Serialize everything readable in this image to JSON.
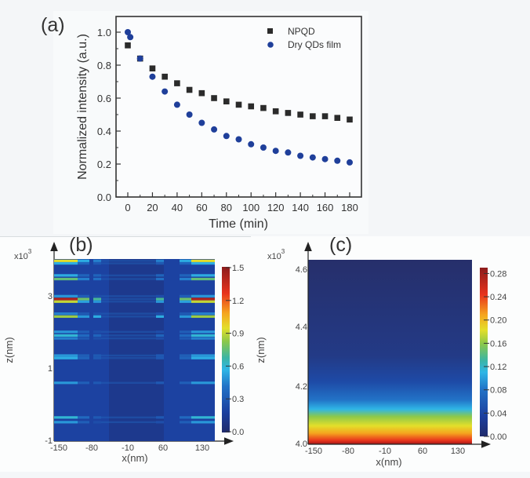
{
  "figure": {
    "panel_labels": [
      "(a)",
      "(b)",
      "(c)"
    ]
  },
  "chart_data": [
    {
      "type": "scatter",
      "panel": "(a)",
      "title": "",
      "xlabel": "Time (min)",
      "ylabel": "Normalized intensity (a.u.)",
      "xlim": [
        -8,
        190
      ],
      "ylim": [
        0.0,
        1.1
      ],
      "xticks": [
        0,
        20,
        40,
        60,
        80,
        100,
        120,
        140,
        160,
        180
      ],
      "xtick_labels": [
        "0",
        "20",
        "40",
        "60",
        "80",
        "100",
        "120",
        "140",
        "160",
        "180"
      ],
      "yticks": [
        0.0,
        0.2,
        0.4,
        0.6,
        0.8,
        1.0
      ],
      "ytick_labels": [
        "0.0",
        "0.2",
        "0.4",
        "0.6",
        "0.8",
        "1.0"
      ],
      "grid": false,
      "legend_position": "top-right",
      "series": [
        {
          "name": "NPQD",
          "marker": "square",
          "color": "#2b2b2b",
          "x": [
            0,
            10,
            20,
            30,
            40,
            50,
            60,
            70,
            80,
            90,
            100,
            110,
            120,
            130,
            140,
            150,
            160,
            170,
            180
          ],
          "y": [
            0.92,
            0.84,
            0.78,
            0.73,
            0.69,
            0.65,
            0.63,
            0.6,
            0.58,
            0.56,
            0.55,
            0.54,
            0.52,
            0.51,
            0.5,
            0.49,
            0.49,
            0.48,
            0.47
          ]
        },
        {
          "name": "Dry QDs film",
          "marker": "circle",
          "color": "#1f3f9a",
          "x": [
            0,
            2,
            10,
            20,
            30,
            40,
            50,
            60,
            70,
            80,
            90,
            100,
            110,
            120,
            130,
            140,
            150,
            160,
            170,
            180
          ],
          "y": [
            1.0,
            0.97,
            0.84,
            0.73,
            0.64,
            0.56,
            0.5,
            0.45,
            0.41,
            0.37,
            0.35,
            0.32,
            0.3,
            0.28,
            0.27,
            0.25,
            0.24,
            0.23,
            0.22,
            0.21
          ]
        }
      ]
    },
    {
      "type": "heatmap",
      "panel": "(b)",
      "xlabel": "x(nm)",
      "ylabel": "z(nm)",
      "y_multiplier": "x10",
      "y_multiplier_exp": "3",
      "xtick_labels": [
        "-150",
        "-80",
        "-10",
        "60",
        "130"
      ],
      "xticks": [
        -150,
        -80,
        -10,
        60,
        130
      ],
      "ytick_labels": [
        "3",
        "1",
        "-1"
      ],
      "yticks": [
        3,
        1,
        -1
      ],
      "ylim": [
        -1,
        4
      ],
      "colorbar": {
        "range": [
          0.0,
          1.5
        ],
        "ticks": [
          1.5,
          1.2,
          0.9,
          0.6,
          0.3,
          0.0
        ],
        "tick_labels": [
          "1.5",
          "1.2",
          "0.9",
          "0.6",
          "0.3",
          "0.0"
        ],
        "colormap": "jet"
      },
      "description": "Horizontal intensity bands along z; brightest near x edges (-150, 130) and at x≈-80 and x≈60; peak ~1.4 near z≈2.9e3",
      "bands": [
        {
          "z": 3.95,
          "edge": 0.95,
          "mid": 0.45
        },
        {
          "z": 3.88,
          "edge": 0.55,
          "mid": 0.3
        },
        {
          "z": 3.55,
          "edge": 0.55,
          "mid": 0.35
        },
        {
          "z": 3.45,
          "edge": 0.75,
          "mid": 0.4
        },
        {
          "z": 2.98,
          "edge": 0.5,
          "mid": 0.25
        },
        {
          "z": 2.9,
          "edge": 1.4,
          "mid": 0.7
        },
        {
          "z": 2.83,
          "edge": 0.9,
          "mid": 0.5
        },
        {
          "z": 2.5,
          "edge": 0.45,
          "mid": 0.25
        },
        {
          "z": 2.42,
          "edge": 0.85,
          "mid": 0.55
        },
        {
          "z": 2.0,
          "edge": 0.5,
          "mid": 0.25
        },
        {
          "z": 1.9,
          "edge": 0.6,
          "mid": 0.35
        },
        {
          "z": 1.82,
          "edge": 0.45,
          "mid": 0.25
        },
        {
          "z": 1.35,
          "edge": 0.5,
          "mid": 0.3
        },
        {
          "z": 1.28,
          "edge": 0.55,
          "mid": 0.3
        },
        {
          "z": 0.6,
          "edge": 0.5,
          "mid": 0.3
        },
        {
          "z": -0.35,
          "edge": 0.6,
          "mid": 0.3
        },
        {
          "z": -0.48,
          "edge": 0.5,
          "mid": 0.25
        }
      ]
    },
    {
      "type": "heatmap",
      "panel": "(c)",
      "xlabel": "x(nm)",
      "ylabel": "z(nm)",
      "y_multiplier": "x10",
      "y_multiplier_exp": "3",
      "xtick_labels": [
        "-150",
        "-80",
        "-10",
        "60",
        "130"
      ],
      "xticks": [
        -150,
        -80,
        -10,
        60,
        130
      ],
      "ytick_labels": [
        "4.6",
        "4.4",
        "4.2",
        "4.0"
      ],
      "yticks": [
        4.6,
        4.4,
        4.2,
        4.0
      ],
      "ylim": [
        4.0,
        4.63
      ],
      "colorbar": {
        "range": [
          0.0,
          0.29
        ],
        "ticks": [
          0.28,
          0.24,
          0.2,
          0.16,
          0.12,
          0.08,
          0.04,
          0.0
        ],
        "tick_labels": [
          "0.28",
          "0.24",
          "0.20",
          "0.16",
          "0.12",
          "0.08",
          "0.04",
          "0.00"
        ],
        "colormap": "jet"
      },
      "description": "Uniform in x; intensity decays with z from ~0.29 at z=4.0e3 to ~0 above z≈4.2e3"
    }
  ]
}
